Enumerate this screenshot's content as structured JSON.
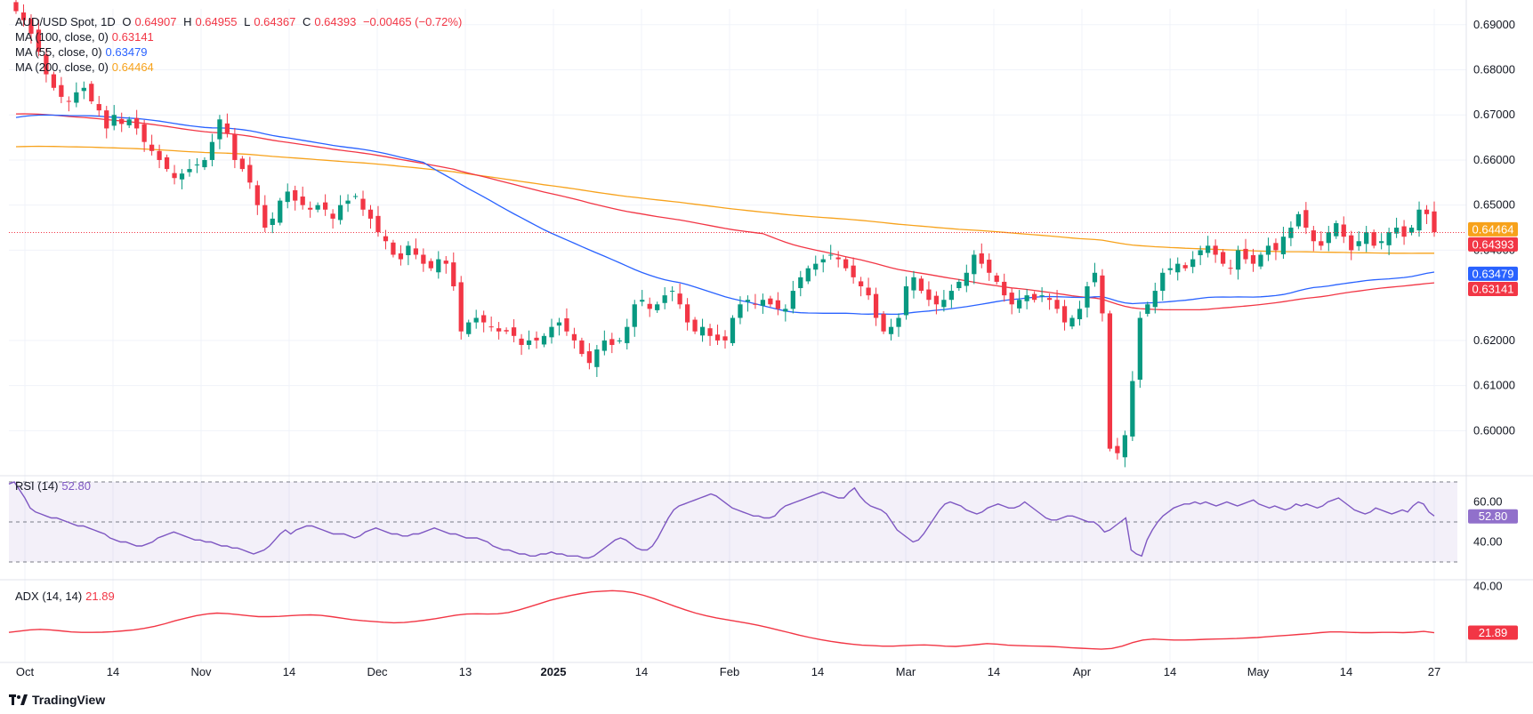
{
  "header": {
    "symbol": "AUD/USD Spot, 1D",
    "open_label": "O",
    "open": "0.64907",
    "high_label": "H",
    "high": "0.64955",
    "low_label": "L",
    "low": "0.64367",
    "close_label": "C",
    "close": "0.64393",
    "change": "−0.00465 (−0.72%)"
  },
  "indicators": {
    "ma100": {
      "label": "MA (100, close, 0)",
      "value": "0.63141",
      "color": "#f23645"
    },
    "ma55": {
      "label": "MA (55, close, 0)",
      "value": "0.63479",
      "color": "#2962ff"
    },
    "ma200": {
      "label": "MA (200, close, 0)",
      "value": "0.64464",
      "color": "#f7a21b"
    },
    "rsi": {
      "label": "RSI (14)",
      "value": "52.80",
      "color": "#7e57c2"
    },
    "adx": {
      "label": "ADX (14, 14)",
      "value": "21.89",
      "color": "#f23645"
    }
  },
  "brand": {
    "name": "TradingView"
  },
  "chart_data": [
    {
      "type": "candlestick",
      "title": "AUD/USD Spot, 1D",
      "ylim": [
        0.591,
        0.6935
      ],
      "y_ticks": [
        "0.69000",
        "0.68000",
        "0.67000",
        "0.66000",
        "0.65000",
        "0.64000",
        "0.62000",
        "0.61000",
        "0.60000"
      ],
      "x_ticks": [
        "Oct",
        "14",
        "Nov",
        "14",
        "Dec",
        "13",
        "2025",
        "14",
        "Feb",
        "14",
        "Mar",
        "14",
        "Apr",
        "14",
        "May",
        "14",
        "27"
      ],
      "last_price": "0.64393",
      "price_labels": [
        {
          "series": "MA 200",
          "value": "0.64464",
          "color": "#f7a21b"
        },
        {
          "series": "Last",
          "value": "0.64393",
          "color": "#f23645"
        },
        {
          "series": "MA 55",
          "value": "0.63479",
          "color": "#2962ff"
        },
        {
          "series": "MA 100",
          "value": "0.63141",
          "color": "#f23645"
        }
      ],
      "closes": [
        0.693,
        0.691,
        0.688,
        0.684,
        0.679,
        0.676,
        0.674,
        0.673,
        0.675,
        0.676,
        0.673,
        0.671,
        0.667,
        0.67,
        0.668,
        0.669,
        0.667,
        0.664,
        0.662,
        0.66,
        0.658,
        0.656,
        0.657,
        0.658,
        0.659,
        0.66,
        0.664,
        0.669,
        0.666,
        0.66,
        0.658,
        0.655,
        0.65,
        0.645,
        0.647,
        0.651,
        0.653,
        0.651,
        0.65,
        0.649,
        0.65,
        0.649,
        0.647,
        0.65,
        0.651,
        0.652,
        0.649,
        0.647,
        0.644,
        0.642,
        0.639,
        0.638,
        0.641,
        0.639,
        0.637,
        0.636,
        0.638,
        0.637,
        0.632,
        0.622,
        0.624,
        0.625,
        0.624,
        0.623,
        0.622,
        0.622,
        0.621,
        0.619,
        0.62,
        0.62,
        0.621,
        0.623,
        0.624,
        0.622,
        0.62,
        0.617,
        0.615,
        0.618,
        0.62,
        0.619,
        0.62,
        0.623,
        0.628,
        0.629,
        0.627,
        0.628,
        0.63,
        0.631,
        0.628,
        0.624,
        0.622,
        0.623,
        0.621,
        0.62,
        0.62,
        0.625,
        0.628,
        0.629,
        0.628,
        0.629,
        0.628,
        0.627,
        0.627,
        0.631,
        0.634,
        0.636,
        0.637,
        0.638,
        0.639,
        0.638,
        0.636,
        0.634,
        0.632,
        0.63,
        0.625,
        0.622,
        0.623,
        0.625,
        0.632,
        0.634,
        0.631,
        0.629,
        0.628,
        0.629,
        0.631,
        0.633,
        0.635,
        0.639,
        0.637,
        0.635,
        0.633,
        0.63,
        0.628,
        0.629,
        0.63,
        0.629,
        0.63,
        0.629,
        0.627,
        0.624,
        0.625,
        0.627,
        0.632,
        0.635,
        0.626,
        0.596,
        0.595,
        0.599,
        0.611,
        0.625,
        0.628,
        0.631,
        0.635,
        0.636,
        0.637,
        0.636,
        0.638,
        0.64,
        0.641,
        0.639,
        0.637,
        0.636,
        0.64,
        0.638,
        0.637,
        0.639,
        0.641,
        0.64,
        0.643,
        0.645,
        0.648,
        0.645,
        0.642,
        0.641,
        0.644,
        0.646,
        0.643,
        0.64,
        0.642,
        0.644,
        0.641,
        0.642,
        0.644,
        0.645,
        0.643,
        0.645,
        0.649,
        0.648,
        0.644
      ],
      "ma55_endpoints": [
        0.669,
        0.6348
      ],
      "ma100_endpoints": [
        0.67,
        0.6314
      ],
      "ma200_endpoints": [
        0.6628,
        0.6446
      ]
    },
    {
      "type": "line",
      "title": "RSI (14)",
      "ylim": [
        30,
        70
      ],
      "y_ticks": [
        "60.00",
        "40.00"
      ],
      "last_value": "52.80",
      "levels": [
        70,
        50,
        30
      ],
      "values": [
        69,
        70,
        66,
        62,
        57,
        55,
        54,
        53,
        52,
        52,
        51,
        50,
        49,
        48,
        48,
        47,
        46,
        45,
        44,
        42,
        41,
        40,
        40,
        39,
        38,
        38,
        39,
        40,
        42,
        43,
        44,
        45,
        44,
        43,
        42,
        41,
        41,
        40,
        40,
        39,
        38,
        38,
        37,
        37,
        36,
        35,
        34,
        35,
        36,
        38,
        41,
        44,
        46,
        44,
        46,
        47,
        48,
        48,
        47,
        46,
        45,
        44,
        44,
        44,
        43,
        42,
        43,
        45,
        46,
        47,
        46,
        45,
        44,
        44,
        43,
        43,
        44,
        44,
        45,
        46,
        47,
        46,
        45,
        44,
        44,
        43,
        42,
        42,
        42,
        41,
        40,
        38,
        37,
        36,
        36,
        35,
        34,
        34,
        33,
        33,
        34,
        34,
        35,
        34,
        34,
        33,
        33,
        33,
        32,
        32,
        33,
        35,
        37,
        39,
        41,
        42,
        41,
        39,
        37,
        36,
        36,
        38,
        42,
        47,
        52,
        56,
        58,
        59,
        60,
        61,
        62,
        63,
        64,
        63,
        61,
        59,
        57,
        56,
        55,
        54,
        53,
        53,
        52,
        52,
        53,
        56,
        58,
        59,
        60,
        61,
        62,
        63,
        64,
        65,
        64,
        63,
        62,
        62,
        65,
        67,
        63,
        60,
        58,
        57,
        56,
        54,
        50,
        46,
        44,
        42,
        40,
        41,
        44,
        48,
        52,
        56,
        59,
        60,
        59,
        58,
        56,
        55,
        54,
        55,
        57,
        58,
        59,
        58,
        57,
        57,
        58,
        60,
        58,
        56,
        54,
        52,
        51,
        51,
        52,
        53,
        53,
        52,
        51,
        50,
        50,
        48,
        45,
        46,
        48,
        50,
        52,
        36,
        34,
        33,
        41,
        46,
        50,
        53,
        55,
        57,
        58,
        59,
        59,
        60,
        59,
        60,
        59,
        58,
        59,
        60,
        59,
        58,
        59,
        60,
        61,
        59,
        58,
        57,
        58,
        57,
        56,
        57,
        59,
        58,
        59,
        58,
        57,
        58,
        60,
        61,
        62,
        60,
        58,
        56,
        55,
        54,
        55,
        57,
        56,
        55,
        54,
        55,
        56,
        55,
        58,
        60,
        59,
        55,
        53
      ]
    },
    {
      "type": "line",
      "title": "ADX (14, 14)",
      "ylim": [
        13,
        42
      ],
      "y_ticks": [
        "40.00"
      ],
      "last_value": "21.89",
      "values": [
        22,
        22.5,
        23,
        23.2,
        23,
        22.6,
        22.2,
        22,
        22,
        22.1,
        22.3,
        22.6,
        23,
        23.6,
        24.4,
        25.4,
        26.6,
        27.6,
        28.6,
        29.2,
        29.6,
        29.4,
        29.0,
        28.6,
        28.2,
        28.2,
        28.3,
        28.6,
        28.8,
        28.9,
        28.7,
        28.2,
        27.6,
        27.0,
        26.6,
        26.3,
        26.0,
        25.8,
        25.9,
        26.3,
        26.8,
        27.4,
        28.1,
        28.8,
        29.2,
        29.3,
        29.2,
        29.3,
        29.8,
        30.8,
        32.0,
        33.3,
        34.6,
        35.6,
        36.5,
        37.3,
        37.9,
        38.2,
        38.4,
        38.2,
        37.6,
        36.6,
        35.3,
        33.8,
        32.3,
        30.9,
        29.6,
        28.6,
        27.7,
        27.0,
        26.3,
        25.6,
        24.8,
        23.9,
        22.9,
        21.9,
        20.9,
        20.0,
        19.2,
        18.5,
        17.9,
        17.4,
        17.0,
        16.8,
        16.6,
        16.6,
        16.8,
        17.0,
        17.1,
        16.9,
        16.6,
        16.5,
        16.8,
        17.2,
        17.6,
        17.4,
        17.0,
        16.8,
        16.7,
        16.6,
        16.5,
        16.3,
        16.0,
        15.8,
        15.6,
        15.4,
        15.7,
        16.6,
        18.0,
        19.0,
        19.4,
        19.2,
        19.0,
        19.0,
        19.1,
        19.3,
        19.4,
        19.5,
        19.6,
        19.8,
        20.0,
        20.3,
        20.6,
        20.9,
        21.2,
        21.5,
        21.9,
        22.2,
        22.2,
        22.0,
        21.9,
        21.9,
        22.0,
        22.0,
        21.9,
        22.1,
        22.4,
        21.89
      ]
    }
  ]
}
